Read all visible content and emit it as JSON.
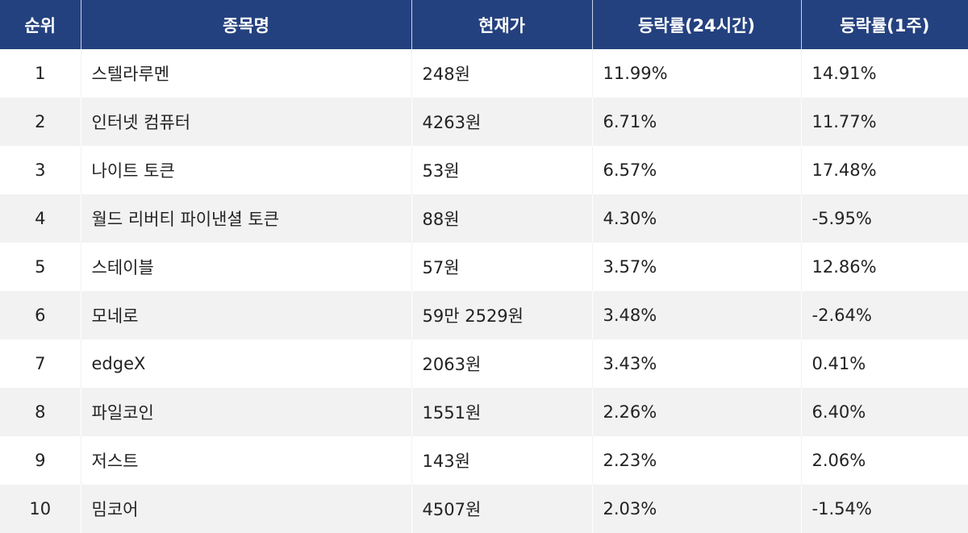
{
  "table": {
    "headers": {
      "rank": "순위",
      "name": "종목명",
      "price": "현재가",
      "change_24h": "등락률(24시간)",
      "change_1w": "등락률(1주)"
    },
    "rows": [
      {
        "rank": "1",
        "name": "스텔라루멘",
        "price": "248원",
        "change_24h": "11.99%",
        "change_1w": "14.91%"
      },
      {
        "rank": "2",
        "name": "인터넷 컴퓨터",
        "price": "4263원",
        "change_24h": "6.71%",
        "change_1w": "11.77%"
      },
      {
        "rank": "3",
        "name": "나이트 토큰",
        "price": "53원",
        "change_24h": "6.57%",
        "change_1w": "17.48%"
      },
      {
        "rank": "4",
        "name": "월드 리버티 파이낸셜 토큰",
        "price": "88원",
        "change_24h": "4.30%",
        "change_1w": "-5.95%"
      },
      {
        "rank": "5",
        "name": "스테이블",
        "price": "57원",
        "change_24h": "3.57%",
        "change_1w": "12.86%"
      },
      {
        "rank": "6",
        "name": "모네로",
        "price": "59만 2529원",
        "change_24h": "3.48%",
        "change_1w": "-2.64%"
      },
      {
        "rank": "7",
        "name": "edgeX",
        "price": "2063원",
        "change_24h": "3.43%",
        "change_1w": "0.41%"
      },
      {
        "rank": "8",
        "name": "파일코인",
        "price": "1551원",
        "change_24h": "2.26%",
        "change_1w": "6.40%"
      },
      {
        "rank": "9",
        "name": "저스트",
        "price": "143원",
        "change_24h": "2.23%",
        "change_1w": "2.06%"
      },
      {
        "rank": "10",
        "name": "밈코어",
        "price": "4507원",
        "change_24h": "2.03%",
        "change_1w": "-1.54%"
      }
    ]
  },
  "colors": {
    "header_bg": "#24417f",
    "header_text": "#ffffff",
    "row_alt_bg": "#f2f2f2",
    "text": "#222222"
  }
}
